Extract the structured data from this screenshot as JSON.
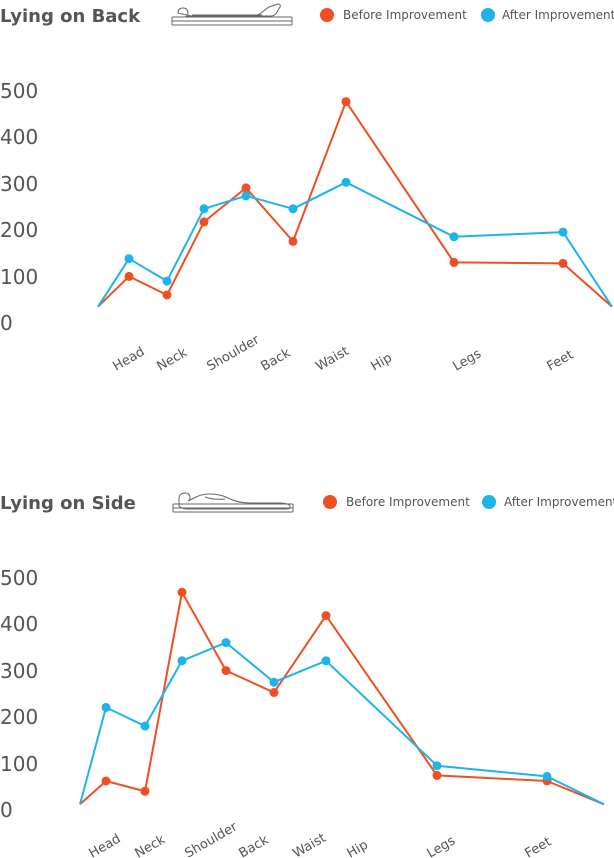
{
  "colors": {
    "before": "#f04e23",
    "after": "#1eb4ea",
    "text": "#555555",
    "icon": "#666666"
  },
  "chart_data": [
    {
      "type": "line",
      "title": "Lying on Back",
      "legend": [
        "Before Improvement",
        "After Improvement"
      ],
      "legend_placement": "top-right",
      "icon": "person-lying-on-back-icon",
      "yticks": [
        "500",
        "400",
        "300",
        "200",
        "100",
        "0"
      ],
      "ylim": [
        0,
        500
      ],
      "categories": [
        "Head",
        "Neck",
        "Shoulder",
        "Back",
        "Waist",
        "Hip",
        "Legs",
        "Feet"
      ],
      "grid": false,
      "series": [
        {
          "name": "Before Improvement",
          "points": [
            [
              0.3,
              35,
              false
            ],
            [
              1,
              100,
              true
            ],
            [
              2,
              60,
              true
            ],
            [
              3,
              217,
              true
            ],
            [
              4,
              290,
              true
            ],
            [
              5,
              175,
              true
            ],
            [
              6,
              475,
              true
            ],
            [
              8,
              130,
              true
            ],
            [
              10.3,
              128,
              true
            ],
            [
              11.4,
              35,
              false
            ]
          ]
        },
        {
          "name": "After Improvement",
          "points": [
            [
              0.3,
              35,
              false
            ],
            [
              1,
              138,
              true
            ],
            [
              2,
              90,
              true
            ],
            [
              3,
              245,
              true
            ],
            [
              4,
              273,
              true
            ],
            [
              5,
              245,
              true
            ],
            [
              6,
              302,
              true
            ],
            [
              8,
              185,
              true
            ],
            [
              10.3,
              195,
              true
            ],
            [
              11.4,
              35,
              false
            ]
          ]
        }
      ]
    },
    {
      "type": "line",
      "title": "Lying on Side",
      "legend": [
        "Before Improvement",
        "After Improvement"
      ],
      "legend_placement": "top-right",
      "icon": "person-lying-on-side-icon",
      "yticks": [
        "500",
        "400",
        "300",
        "200",
        "100",
        "0"
      ],
      "ylim": [
        0,
        500
      ],
      "categories": [
        "Head",
        "Neck",
        "Shoulder",
        "Back",
        "Waist",
        "Hip",
        "Legs",
        "Feet"
      ],
      "grid": false,
      "series": [
        {
          "name": "Before Improvement",
          "points": [
            [
              0.3,
              10,
              false
            ],
            [
              1,
              60,
              true
            ],
            [
              2,
              38,
              true
            ],
            [
              3,
              465,
              true
            ],
            [
              4,
              297,
              true
            ],
            [
              5,
              250,
              true
            ],
            [
              6,
              415,
              true
            ],
            [
              8,
              72,
              true
            ],
            [
              10.3,
              60,
              true
            ],
            [
              11.4,
              10,
              false
            ]
          ]
        },
        {
          "name": "After Improvement",
          "points": [
            [
              0.3,
              10,
              false
            ],
            [
              1,
              218,
              true
            ],
            [
              2,
              178,
              true
            ],
            [
              3,
              318,
              true
            ],
            [
              4,
              357,
              true
            ],
            [
              5,
              272,
              true
            ],
            [
              6,
              318,
              true
            ],
            [
              8,
              93,
              true
            ],
            [
              10.3,
              70,
              true
            ],
            [
              11.4,
              10,
              false
            ]
          ]
        }
      ]
    }
  ]
}
